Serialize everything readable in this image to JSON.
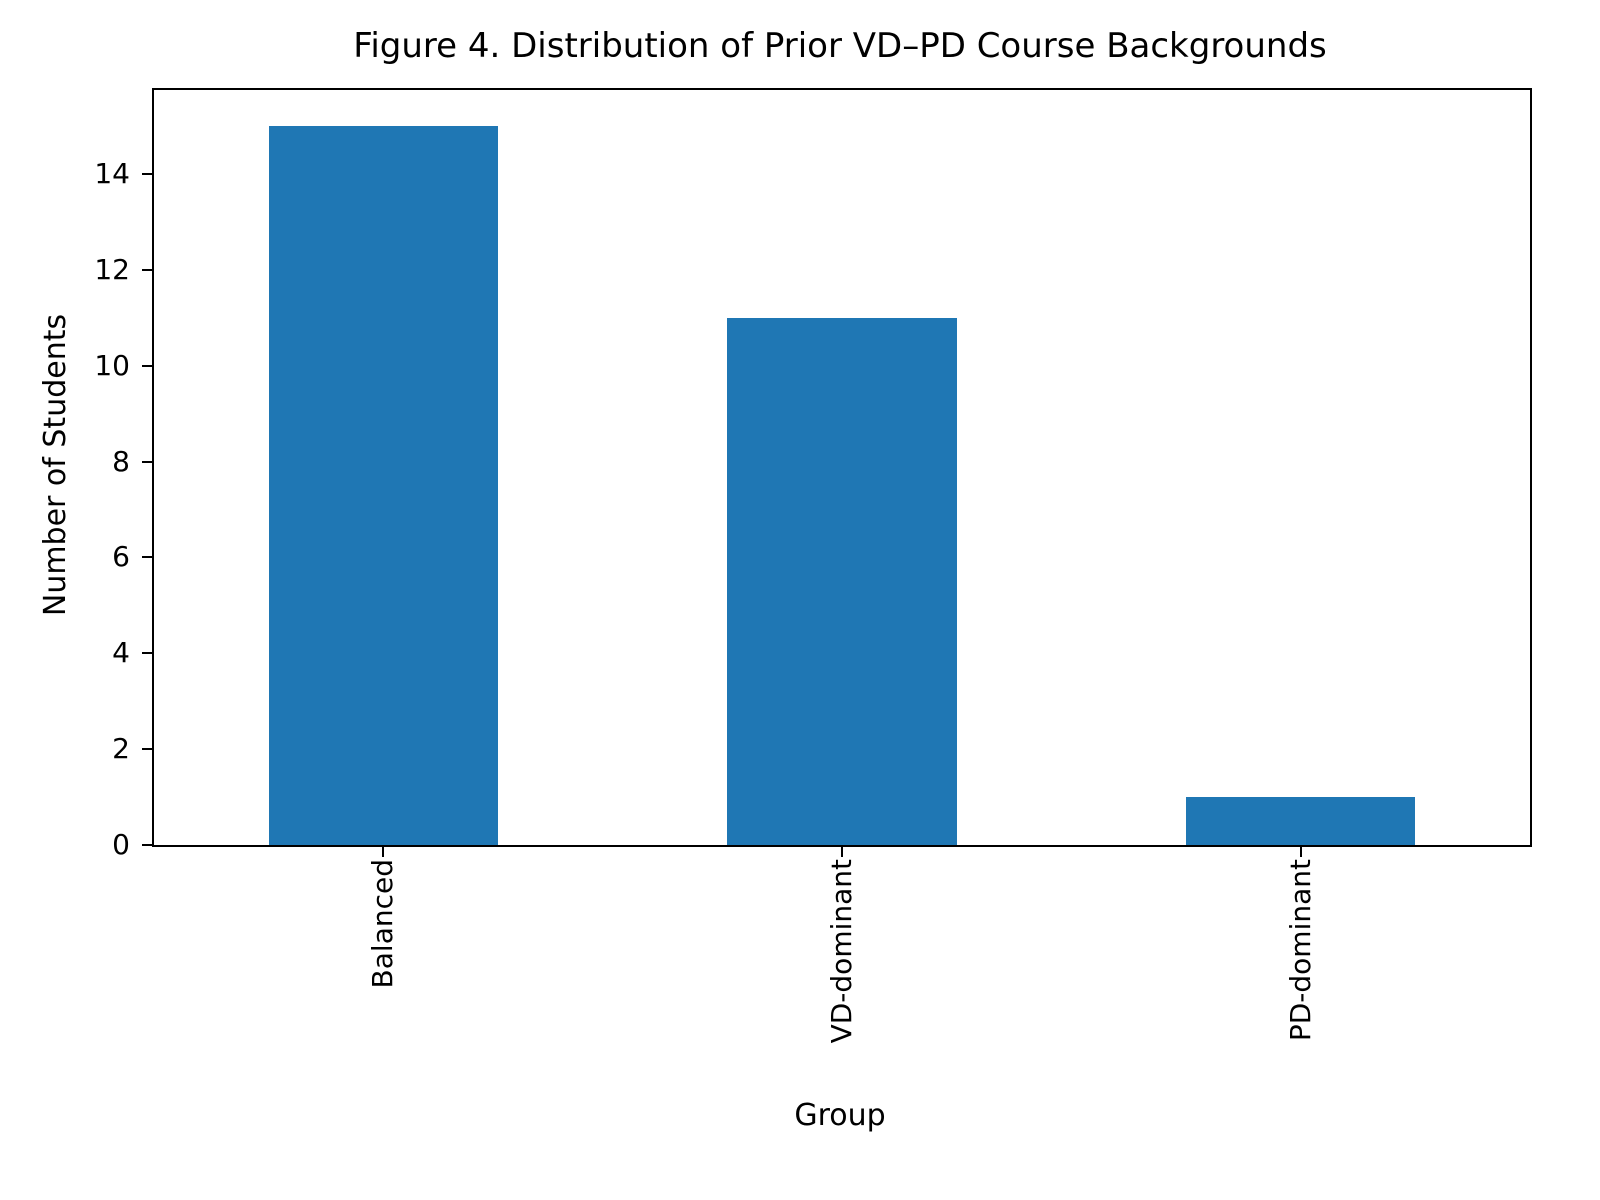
{
  "chart_data": {
    "type": "bar",
    "title": "Figure 4. Distribution of Prior VD–PD Course Backgrounds",
    "xlabel": "Group",
    "ylabel": "Number of Students",
    "categories": [
      "Balanced",
      "VD-dominant",
      "PD-dominant"
    ],
    "values": [
      15,
      11,
      1
    ],
    "yticks": [
      0,
      2,
      4,
      6,
      8,
      10,
      12,
      14
    ],
    "ylim": [
      0,
      15.75
    ],
    "bar_color": "#1f77b4",
    "bar_relative_width": 0.5,
    "tick_label_rotation": 90,
    "grid": false,
    "legend": "none",
    "background_color": "#ffffff",
    "text_color": "#000000"
  }
}
